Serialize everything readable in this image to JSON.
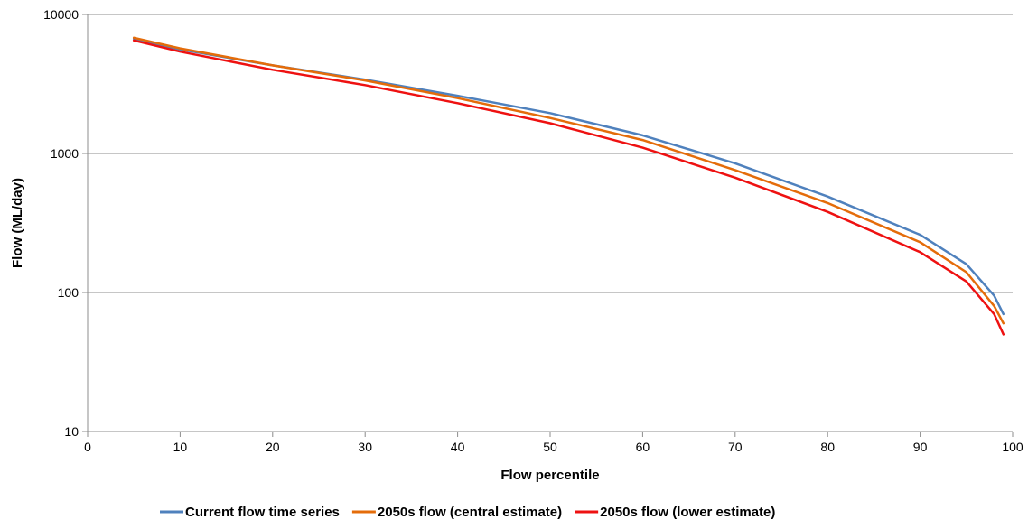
{
  "chart_data": {
    "type": "line",
    "title": "",
    "xlabel": "Flow percentile",
    "ylabel": "Flow (ML/day)",
    "xlim": [
      0,
      100
    ],
    "ylim": [
      10,
      10000
    ],
    "yscale": "log",
    "grid": true,
    "legend_position": "bottom",
    "x_ticks": [
      "0",
      "10",
      "20",
      "30",
      "40",
      "50",
      "60",
      "70",
      "80",
      "90",
      "100"
    ],
    "y_ticks": [
      "10",
      "100",
      "1000",
      "10000"
    ],
    "x_tick_values": [
      0,
      10,
      20,
      30,
      40,
      50,
      60,
      70,
      80,
      90,
      100
    ],
    "y_tick_values": [
      10,
      100,
      1000,
      10000
    ],
    "x": [
      5,
      10,
      20,
      30,
      40,
      50,
      60,
      70,
      80,
      90,
      95,
      98,
      99
    ],
    "series": [
      {
        "name": "Current flow time series",
        "color": "#4f81bd",
        "values": [
          6700,
          5600,
          4300,
          3400,
          2600,
          1950,
          1350,
          850,
          490,
          260,
          160,
          95,
          70
        ]
      },
      {
        "name": "2050s flow (central estimate)",
        "color": "#e46c0a",
        "values": [
          6800,
          5700,
          4300,
          3350,
          2500,
          1800,
          1250,
          760,
          440,
          230,
          140,
          80,
          60
        ]
      },
      {
        "name": "2050s flow (lower estimate)",
        "color": "#ee1111",
        "values": [
          6500,
          5400,
          4000,
          3100,
          2300,
          1650,
          1100,
          670,
          380,
          195,
          120,
          70,
          50
        ]
      }
    ]
  }
}
